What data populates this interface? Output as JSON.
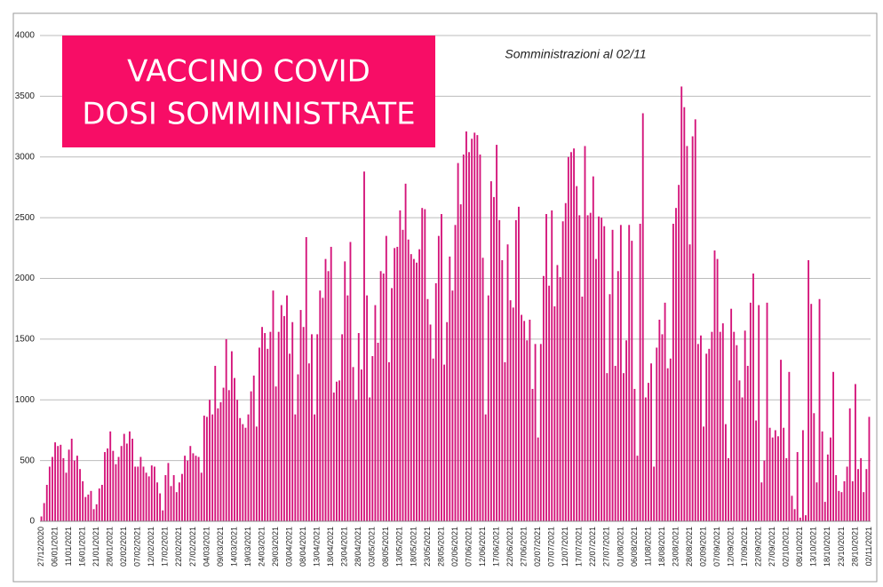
{
  "chart_data": {
    "type": "bar",
    "title": [
      "VACCINO COVID",
      "DOSI SOMMINISTRATE"
    ],
    "subtitle": "Somministrazioni al 02/11",
    "color": "#d4147a",
    "ylim": [
      0,
      4000
    ],
    "yticks": [
      0,
      500,
      1000,
      1500,
      2000,
      2500,
      3000,
      3500,
      4000
    ],
    "grid": true,
    "categories": [
      "27/12/2020",
      null,
      null,
      null,
      null,
      "06/01/2021",
      null,
      null,
      null,
      null,
      "11/01/2021",
      null,
      null,
      null,
      null,
      "16/01/2021",
      null,
      null,
      null,
      null,
      "21/01/2021",
      null,
      null,
      null,
      null,
      "28/01/2021",
      null,
      null,
      null,
      null,
      "02/02/2021",
      null,
      null,
      null,
      null,
      "07/02/2021",
      null,
      null,
      null,
      null,
      "12/02/2021",
      null,
      null,
      null,
      null,
      "17/02/2021",
      null,
      null,
      null,
      null,
      "22/02/2021",
      null,
      null,
      null,
      null,
      "27/02/2021",
      null,
      null,
      null,
      null,
      "04/03/2021",
      null,
      null,
      null,
      null,
      "09/03/2021",
      null,
      null,
      null,
      null,
      "14/03/2021",
      null,
      null,
      null,
      null,
      "19/03/2021",
      null,
      null,
      null,
      null,
      "24/03/2021",
      null,
      null,
      null,
      null,
      "29/03/2021",
      null,
      null,
      null,
      null,
      "03/04/2021",
      null,
      null,
      null,
      null,
      "08/04/2021",
      null,
      null,
      null,
      null,
      "13/04/2021",
      null,
      null,
      null,
      null,
      "18/04/2021",
      null,
      null,
      null,
      null,
      "23/04/2021",
      null,
      null,
      null,
      null,
      "28/04/2021",
      null,
      null,
      null,
      null,
      "03/05/2021",
      null,
      null,
      null,
      null,
      "08/05/2021",
      null,
      null,
      null,
      null,
      "13/05/2021",
      null,
      null,
      null,
      null,
      "18/05/2021",
      null,
      null,
      null,
      null,
      "23/05/2021",
      null,
      null,
      null,
      null,
      "28/05/2021",
      null,
      null,
      null,
      null,
      "02/06/2021",
      null,
      null,
      null,
      null,
      "07/06/2021",
      null,
      null,
      null,
      null,
      "12/06/2021",
      null,
      null,
      null,
      null,
      "17/06/2021",
      null,
      null,
      null,
      null,
      "22/06/2021",
      null,
      null,
      null,
      null,
      "27/06/2021",
      null,
      null,
      null,
      null,
      "02/07/2021",
      null,
      null,
      null,
      null,
      "07/07/2021",
      null,
      null,
      null,
      null,
      "12/07/2021",
      null,
      null,
      null,
      null,
      "17/07/2021",
      null,
      null,
      null,
      null,
      "22/07/2021",
      null,
      null,
      null,
      null,
      "27/07/2021",
      null,
      null,
      null,
      null,
      "01/08/2021",
      null,
      null,
      null,
      null,
      "06/08/2021",
      null,
      null,
      null,
      null,
      "11/08/2021",
      null,
      null,
      null,
      null,
      "18/08/2021",
      null,
      null,
      null,
      null,
      "23/08/2021",
      null,
      null,
      null,
      null,
      "28/08/2021",
      null,
      null,
      null,
      null,
      "02/09/2021",
      null,
      null,
      null,
      null,
      "07/09/2021",
      null,
      null,
      null,
      null,
      "12/09/2021",
      null,
      null,
      null,
      null,
      "17/09/2021",
      null,
      null,
      null,
      null,
      "22/09/2021",
      null,
      null,
      null,
      null,
      "27/09/2021",
      null,
      null,
      null,
      null,
      "02/10/2021",
      null,
      null,
      null,
      null,
      "08/10/2021",
      null,
      null,
      null,
      null,
      "13/10/2021",
      null,
      null,
      null,
      null,
      "18/10/2021",
      null,
      null,
      null,
      null,
      "23/10/2021",
      null,
      null,
      null,
      null,
      "28/10/2021",
      null,
      null,
      null,
      null,
      "02/11/2021"
    ],
    "values": [
      40,
      150,
      300,
      450,
      530,
      650,
      620,
      630,
      520,
      400,
      590,
      680,
      500,
      540,
      430,
      330,
      200,
      220,
      250,
      100,
      140,
      270,
      300,
      570,
      600,
      740,
      580,
      470,
      530,
      620,
      720,
      640,
      740,
      680,
      450,
      450,
      530,
      450,
      400,
      370,
      460,
      450,
      320,
      230,
      90,
      380,
      480,
      290,
      380,
      240,
      320,
      390,
      540,
      500,
      620,
      560,
      540,
      530,
      400,
      870,
      860,
      1000,
      880,
      1280,
      930,
      980,
      1100,
      1500,
      1080,
      1400,
      1180,
      1000,
      850,
      800,
      770,
      880,
      1070,
      1200,
      780,
      1430,
      1600,
      1550,
      1420,
      1560,
      1900,
      1110,
      1560,
      1780,
      1690,
      1860,
      1380,
      1640,
      880,
      1210,
      1740,
      1600,
      2340,
      1300,
      1540,
      880,
      1540,
      1900,
      1840,
      2160,
      2060,
      2260,
      1060,
      1150,
      1160,
      1540,
      2140,
      1860,
      2300,
      1270,
      1000,
      1550,
      1250,
      2880,
      1860,
      1020,
      1360,
      1780,
      1470,
      2060,
      2040,
      2350,
      1310,
      1920,
      2250,
      2260,
      2560,
      2400,
      2780,
      2320,
      2200,
      2160,
      2130,
      2240,
      2580,
      2570,
      1830,
      1620,
      1340,
      1960,
      2350,
      2530,
      1290,
      1640,
      2180,
      1900,
      2440,
      2950,
      2610,
      3020,
      3210,
      3040,
      3150,
      3200,
      3180,
      3020,
      2170,
      880,
      1860,
      2800,
      2670,
      3100,
      2480,
      2150,
      1310,
      2280,
      1820,
      1760,
      2480,
      2590,
      1700,
      1650,
      1490,
      1660,
      1090,
      1460,
      690,
      1460,
      2020,
      2530,
      1940,
      2560,
      1770,
      2110,
      2010,
      2470,
      2620,
      3000,
      3040,
      3070,
      2760,
      2520,
      1850,
      3090,
      2520,
      2540,
      2840,
      2160,
      2510,
      2500,
      2430,
      1220,
      1870,
      2400,
      1280,
      2060,
      2440,
      1220,
      1490,
      2440,
      2310,
      1090,
      540,
      2450,
      3360,
      1020,
      1140,
      1300,
      450,
      1430,
      1660,
      1540,
      1800,
      1260,
      1340,
      2450,
      2580,
      2770,
      3580,
      3410,
      3090,
      2280,
      3170,
      3310,
      1460,
      1530,
      780,
      1380,
      1420,
      1560,
      2230,
      2160,
      1560,
      1630,
      800,
      520,
      1750,
      1560,
      1450,
      1160,
      1020,
      1570,
      1280,
      1800,
      2040,
      830,
      1780,
      320,
      500,
      1800,
      770,
      690,
      750,
      700,
      1330,
      770,
      520,
      1230,
      210,
      100,
      570,
      30,
      750,
      50,
      2150,
      1790,
      890,
      320,
      1830,
      740,
      160,
      550,
      690,
      1230,
      380,
      250,
      240,
      330,
      450,
      930,
      330,
      1130,
      430,
      520,
      240,
      430,
      860
    ]
  }
}
